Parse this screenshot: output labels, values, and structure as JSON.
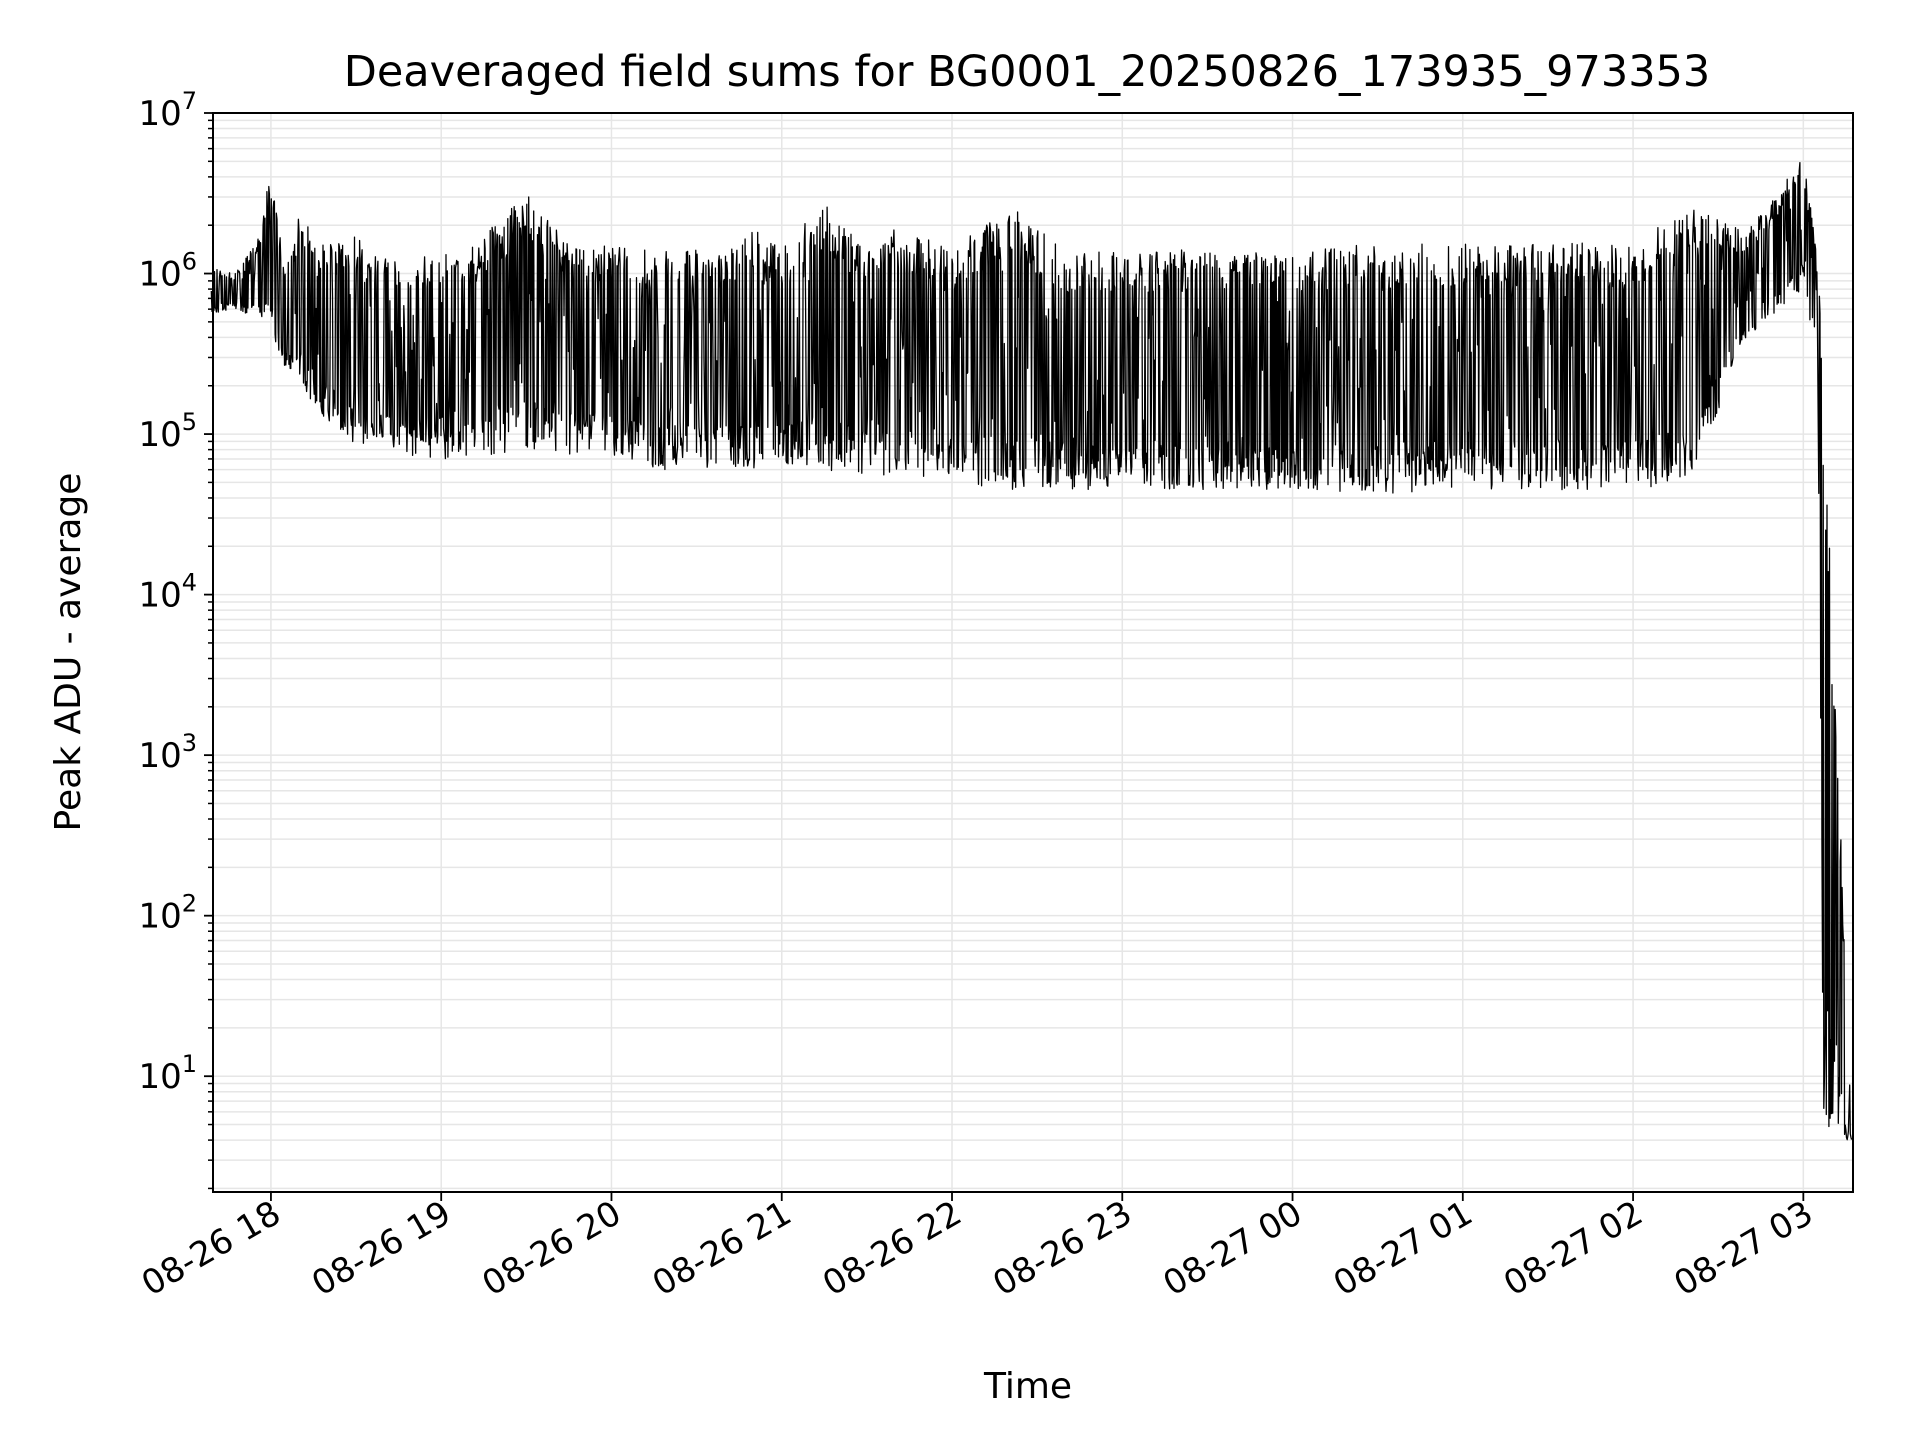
{
  "chart_data": {
    "type": "line",
    "title": "Deaveraged field sums for BG0001_20250826_173935_973353",
    "xlabel": "Time",
    "ylabel": "Peak ADU - average",
    "yscale": "log",
    "ylim": [
      1.9,
      10000000
    ],
    "xlim": [
      "2025-08-26 17:39:35",
      "2025-08-27 03:17:30"
    ],
    "grid": true,
    "line_color": "#000000",
    "grid_color": "#e6e6e6",
    "x_ticks": [
      {
        "t": "2025-08-26 18:00",
        "label": "08-26 18"
      },
      {
        "t": "2025-08-26 19:00",
        "label": "08-26 19"
      },
      {
        "t": "2025-08-26 20:00",
        "label": "08-26 20"
      },
      {
        "t": "2025-08-26 21:00",
        "label": "08-26 21"
      },
      {
        "t": "2025-08-26 22:00",
        "label": "08-26 22"
      },
      {
        "t": "2025-08-26 23:00",
        "label": "08-26 23"
      },
      {
        "t": "2025-08-27 00:00",
        "label": "08-27 00"
      },
      {
        "t": "2025-08-27 01:00",
        "label": "08-27 01"
      },
      {
        "t": "2025-08-27 02:00",
        "label": "08-27 02"
      },
      {
        "t": "2025-08-27 03:00",
        "label": "08-27 03"
      }
    ],
    "y_ticks": [
      {
        "value": 10,
        "base": "10",
        "exp": "1"
      },
      {
        "value": 100,
        "base": "10",
        "exp": "2"
      },
      {
        "value": 1000,
        "base": "10",
        "exp": "3"
      },
      {
        "value": 10000,
        "base": "10",
        "exp": "4"
      },
      {
        "value": 100000,
        "base": "10",
        "exp": "5"
      },
      {
        "value": 1000000,
        "base": "10",
        "exp": "6"
      },
      {
        "value": 10000000,
        "base": "10",
        "exp": "7"
      }
    ],
    "series": [
      {
        "values": [
          {
            "t": "2025-08-26 17:39",
            "lo": 550000,
            "hi": 1100000
          },
          {
            "t": "2025-08-26 17:47",
            "lo": 600000,
            "hi": 1000000
          },
          {
            "t": "2025-08-26 17:55",
            "lo": 500000,
            "hi": 1600000
          },
          {
            "t": "2025-08-26 18:00",
            "lo": 450000,
            "hi": 4300000
          },
          {
            "t": "2025-08-26 18:05",
            "lo": 250000,
            "hi": 1000000
          },
          {
            "t": "2025-08-26 18:10",
            "lo": 200000,
            "hi": 2300000
          },
          {
            "t": "2025-08-26 18:20",
            "lo": 120000,
            "hi": 1500000
          },
          {
            "t": "2025-08-26 18:30",
            "lo": 85000,
            "hi": 1700000
          },
          {
            "t": "2025-08-26 18:40",
            "lo": 75000,
            "hi": 1300000
          },
          {
            "t": "2025-08-26 18:55",
            "lo": 70000,
            "hi": 1400000
          },
          {
            "t": "2025-08-26 19:10",
            "lo": 70000,
            "hi": 1400000
          },
          {
            "t": "2025-08-26 19:30",
            "lo": 80000,
            "hi": 3200000
          },
          {
            "t": "2025-08-26 19:45",
            "lo": 75000,
            "hi": 1500000
          },
          {
            "t": "2025-08-26 20:00",
            "lo": 75000,
            "hi": 1500000
          },
          {
            "t": "2025-08-26 20:15",
            "lo": 60000,
            "hi": 1400000
          },
          {
            "t": "2025-08-26 20:40",
            "lo": 60000,
            "hi": 1400000
          },
          {
            "t": "2025-08-26 20:50",
            "lo": 60000,
            "hi": 2000000
          },
          {
            "t": "2025-08-26 21:00",
            "lo": 60000,
            "hi": 1400000
          },
          {
            "t": "2025-08-26 21:15",
            "lo": 60000,
            "hi": 2800000
          },
          {
            "t": "2025-08-26 21:30",
            "lo": 55000,
            "hi": 1400000
          },
          {
            "t": "2025-08-26 21:40",
            "lo": 55000,
            "hi": 2000000
          },
          {
            "t": "2025-08-26 22:00",
            "lo": 50000,
            "hi": 1400000
          },
          {
            "t": "2025-08-26 22:20",
            "lo": 45000,
            "hi": 2700000
          },
          {
            "t": "2025-08-26 22:40",
            "lo": 45000,
            "hi": 1400000
          },
          {
            "t": "2025-08-26 23:00",
            "lo": 45000,
            "hi": 1400000
          },
          {
            "t": "2025-08-26 23:30",
            "lo": 45000,
            "hi": 1450000
          },
          {
            "t": "2025-08-27 00:00",
            "lo": 45000,
            "hi": 1400000
          },
          {
            "t": "2025-08-27 00:30",
            "lo": 42000,
            "hi": 1550000
          },
          {
            "t": "2025-08-27 01:00",
            "lo": 45000,
            "hi": 1550000
          },
          {
            "t": "2025-08-27 01:30",
            "lo": 45000,
            "hi": 1550000
          },
          {
            "t": "2025-08-27 02:00",
            "lo": 45000,
            "hi": 1550000
          },
          {
            "t": "2025-08-27 02:20",
            "lo": 50000,
            "hi": 2600000
          },
          {
            "t": "2025-08-27 02:40",
            "lo": 400000,
            "hi": 1800000
          },
          {
            "t": "2025-08-27 03:00",
            "lo": 800000,
            "hi": 5300000
          },
          {
            "t": "2025-08-27 03:05",
            "lo": 300000,
            "hi": 1300000
          },
          {
            "t": "2025-08-27 03:07",
            "lo": 4,
            "hi": 300000
          },
          {
            "t": "2025-08-27 03:17",
            "lo": 4,
            "hi": 4.5
          }
        ]
      }
    ]
  }
}
